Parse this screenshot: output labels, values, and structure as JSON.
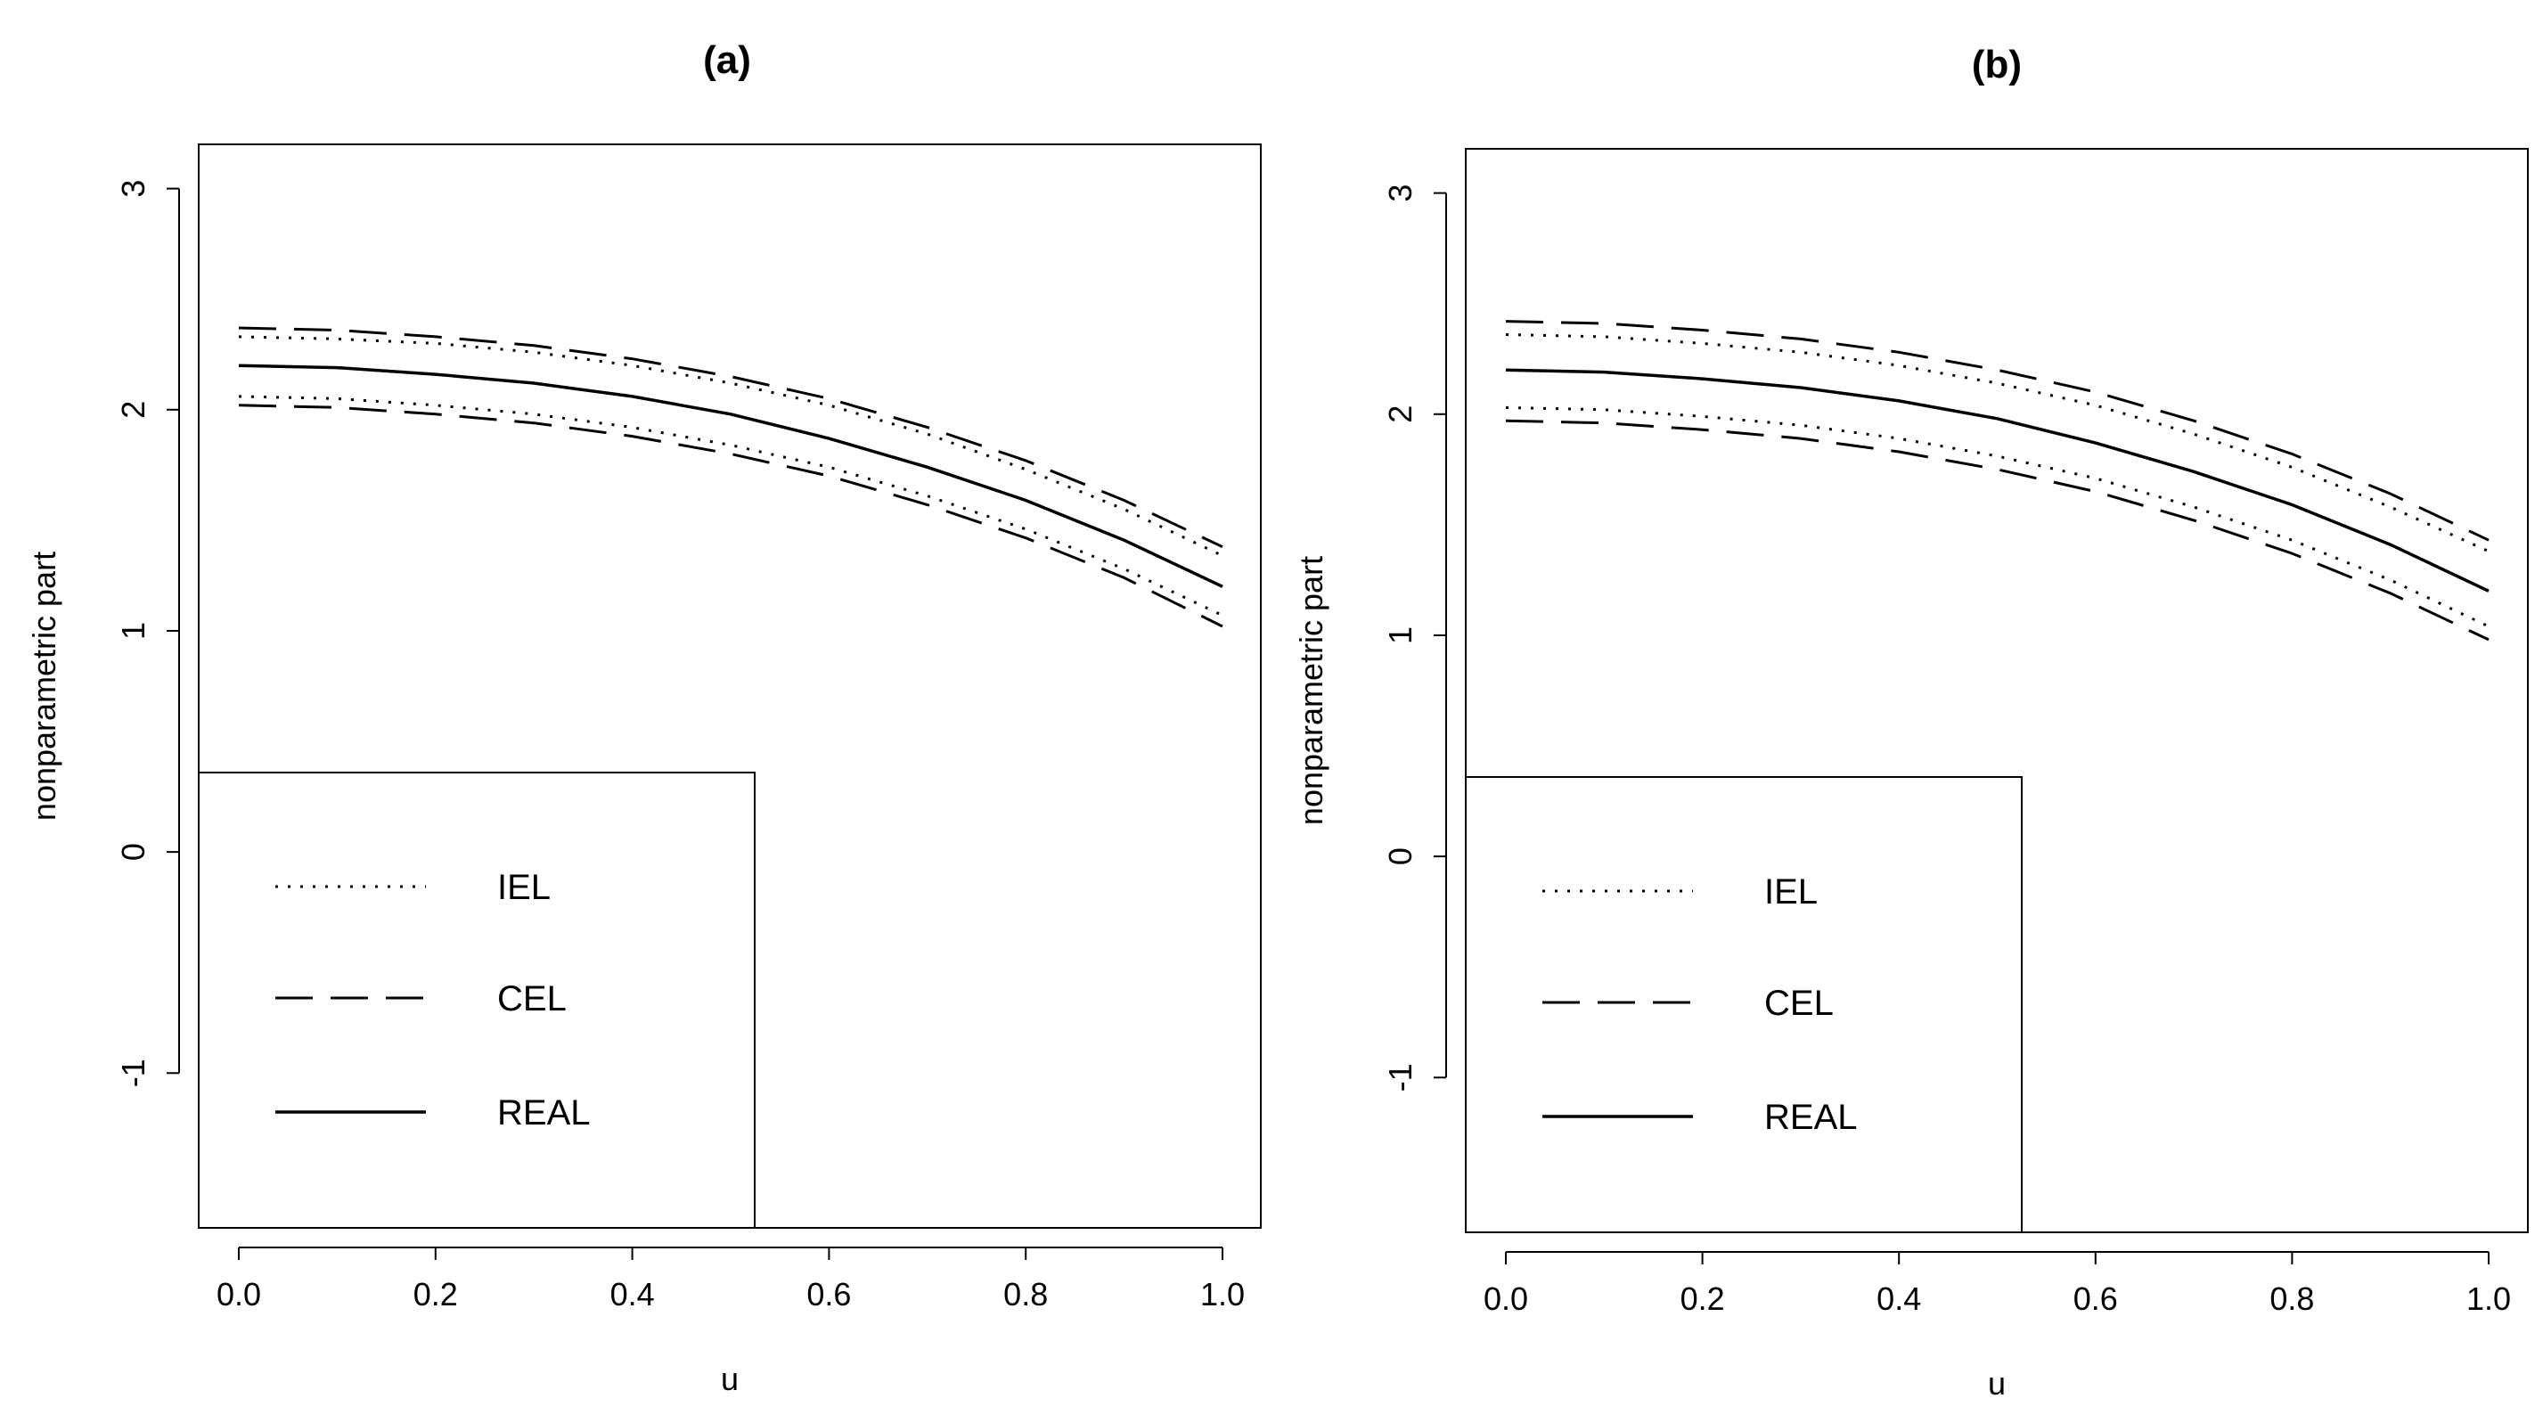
{
  "chart_data": [
    {
      "type": "line",
      "title": "(a)",
      "xlabel": "u",
      "ylabel": "nonparametric part",
      "xlim": [
        0.0,
        1.0
      ],
      "ylim": [
        -1.7,
        3.2
      ],
      "xticks": [
        "0.0",
        "0.2",
        "0.4",
        "0.6",
        "0.8",
        "1.0"
      ],
      "yticks": [
        "-1",
        "0",
        "1",
        "2",
        "3"
      ],
      "legend_position": "bottom-left",
      "x": [
        0.0,
        0.1,
        0.2,
        0.3,
        0.4,
        0.5,
        0.6,
        0.7,
        0.8,
        0.9,
        1.0
      ],
      "series": [
        {
          "name": "IEL",
          "style": "dotted",
          "band": "upper",
          "values": [
            2.33,
            2.32,
            2.3,
            2.26,
            2.2,
            2.12,
            2.02,
            1.89,
            1.73,
            1.55,
            1.34
          ]
        },
        {
          "name": "IEL",
          "style": "dotted",
          "band": "lower",
          "values": [
            2.06,
            2.05,
            2.02,
            1.98,
            1.92,
            1.84,
            1.74,
            1.61,
            1.46,
            1.28,
            1.07
          ]
        },
        {
          "name": "CEL",
          "style": "dashed",
          "band": "upper",
          "values": [
            2.37,
            2.36,
            2.33,
            2.29,
            2.23,
            2.15,
            2.05,
            1.92,
            1.77,
            1.59,
            1.38
          ]
        },
        {
          "name": "CEL",
          "style": "dashed",
          "band": "lower",
          "values": [
            2.02,
            2.01,
            1.98,
            1.94,
            1.88,
            1.8,
            1.7,
            1.57,
            1.42,
            1.24,
            1.02
          ]
        },
        {
          "name": "REAL",
          "style": "solid",
          "band": "center",
          "values": [
            2.2,
            2.19,
            2.16,
            2.12,
            2.06,
            1.98,
            1.87,
            1.74,
            1.59,
            1.41,
            1.2
          ]
        }
      ],
      "legend": [
        "IEL",
        "CEL",
        "REAL"
      ]
    },
    {
      "type": "line",
      "title": "(b)",
      "xlabel": "u",
      "ylabel": "nonparametric part",
      "xlim": [
        0.0,
        1.0
      ],
      "ylim": [
        -1.7,
        3.2
      ],
      "xticks": [
        "0.0",
        "0.2",
        "0.4",
        "0.6",
        "0.8",
        "1.0"
      ],
      "yticks": [
        "-1",
        "0",
        "1",
        "2",
        "3"
      ],
      "legend_position": "bottom-left",
      "x": [
        0.0,
        0.1,
        0.2,
        0.3,
        0.4,
        0.5,
        0.6,
        0.7,
        0.8,
        0.9,
        1.0
      ],
      "series": [
        {
          "name": "IEL",
          "style": "dotted",
          "band": "upper",
          "values": [
            2.36,
            2.35,
            2.32,
            2.28,
            2.22,
            2.14,
            2.04,
            1.91,
            1.76,
            1.58,
            1.38
          ]
        },
        {
          "name": "IEL",
          "style": "dotted",
          "band": "lower",
          "values": [
            2.03,
            2.02,
            1.99,
            1.95,
            1.89,
            1.81,
            1.71,
            1.58,
            1.43,
            1.25,
            1.04
          ]
        },
        {
          "name": "CEL",
          "style": "dashed",
          "band": "upper",
          "values": [
            2.42,
            2.41,
            2.38,
            2.34,
            2.28,
            2.2,
            2.1,
            1.97,
            1.82,
            1.64,
            1.43
          ]
        },
        {
          "name": "CEL",
          "style": "dashed",
          "band": "lower",
          "values": [
            1.97,
            1.96,
            1.93,
            1.89,
            1.83,
            1.75,
            1.65,
            1.52,
            1.37,
            1.19,
            0.98
          ]
        },
        {
          "name": "REAL",
          "style": "solid",
          "band": "center",
          "values": [
            2.2,
            2.19,
            2.16,
            2.12,
            2.06,
            1.98,
            1.87,
            1.74,
            1.59,
            1.41,
            1.2
          ]
        }
      ],
      "legend": [
        "IEL",
        "CEL",
        "REAL"
      ]
    }
  ]
}
